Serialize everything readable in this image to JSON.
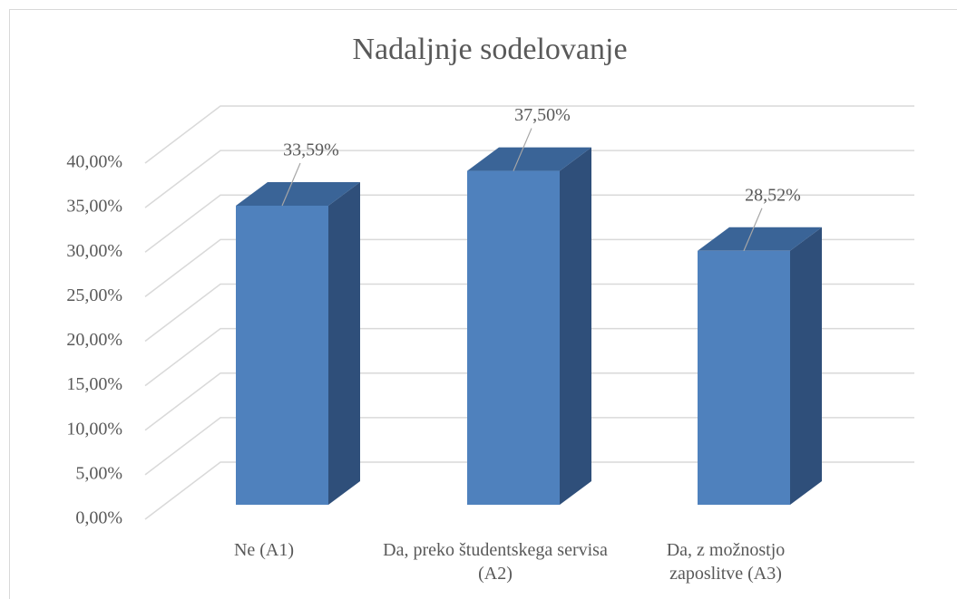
{
  "chart_data": {
    "type": "bar3d",
    "title": "Nadaljnje sodelovanje",
    "categories": [
      "Ne (A1)",
      "Da, preko študentskega servisa (A2)",
      "Da, z možnostjo zaposlitve (A3)"
    ],
    "values": [
      33.59,
      37.5,
      28.52
    ],
    "value_labels": [
      "33,59%",
      "37,50%",
      "28,52%"
    ],
    "color": "#4f81bd",
    "ylim": [
      0,
      40
    ],
    "yticks": [
      {
        "value": 0,
        "label": "0,00%"
      },
      {
        "value": 5,
        "label": "5,00%"
      },
      {
        "value": 10,
        "label": "10,00%"
      },
      {
        "value": 15,
        "label": "15,00%"
      },
      {
        "value": 20,
        "label": "20,00%"
      },
      {
        "value": 25,
        "label": "25,00%"
      },
      {
        "value": 30,
        "label": "30,00%"
      },
      {
        "value": 35,
        "label": "35,00%"
      },
      {
        "value": 40,
        "label": "40,00%"
      }
    ],
    "grid": true
  }
}
